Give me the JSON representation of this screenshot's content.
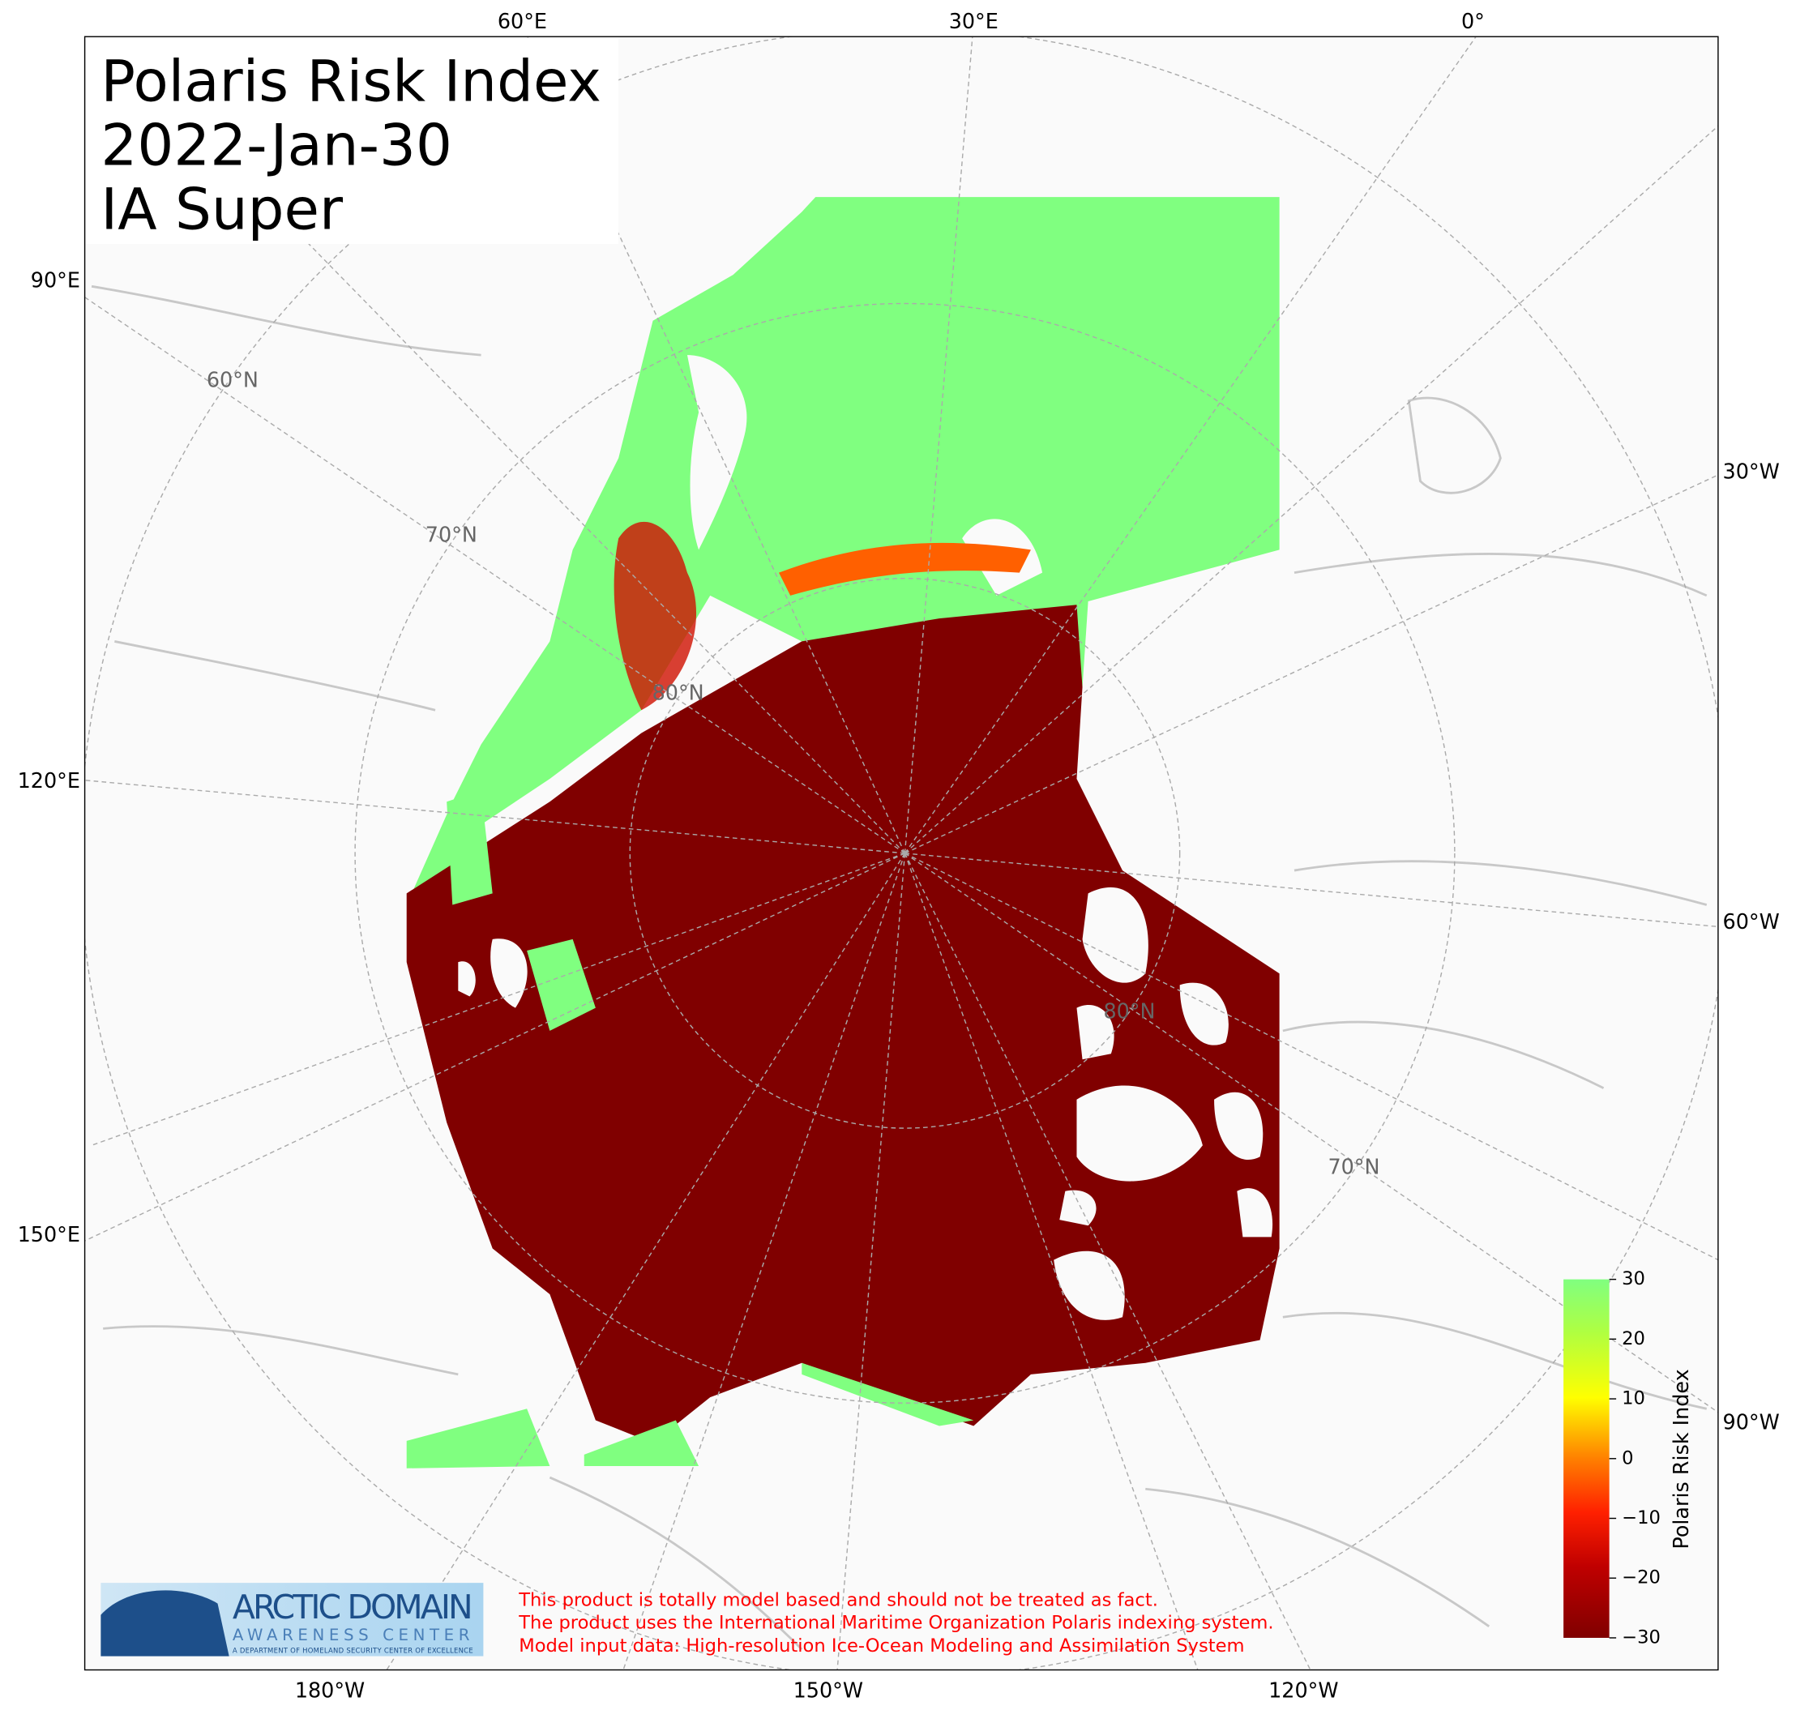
{
  "title": "Polaris Risk Index",
  "date": "2022-Jan-30",
  "ice_class": "IA Super",
  "map_labels": {
    "top": [
      "60°E",
      "30°E",
      "0°"
    ],
    "left": [
      "90°E",
      "120°E",
      "150°E"
    ],
    "right": [
      "30°W",
      "60°W",
      "90°W"
    ],
    "bottom": [
      "180°W",
      "150°W",
      "120°W"
    ],
    "latitudes": [
      "60°N",
      "70°N",
      "80°N",
      "80°N",
      "70°N"
    ]
  },
  "colorbar": {
    "label": "Polaris Risk Index",
    "lim": [
      -30,
      30
    ],
    "ticks": [
      30,
      20,
      10,
      0,
      {
        "value": -10,
        "label": "−10"
      },
      {
        "value": -20,
        "label": "−20"
      },
      {
        "value": -30,
        "label": "−30"
      }
    ]
  },
  "logo": {
    "name": "ARCTIC DOMAIN",
    "subname": "AWARENESS CENTER",
    "tagline": "A DEPARTMENT OF HOMELAND SECURITY CENTER OF EXCELLENCE"
  },
  "disclaimer": [
    "This product is totally model based and should not be treated as fact.",
    "The product uses the International Maritime Organization Polaris indexing system.",
    "Model input data: High-resolution Ice-Ocean Modeling and Assimilation System"
  ]
}
